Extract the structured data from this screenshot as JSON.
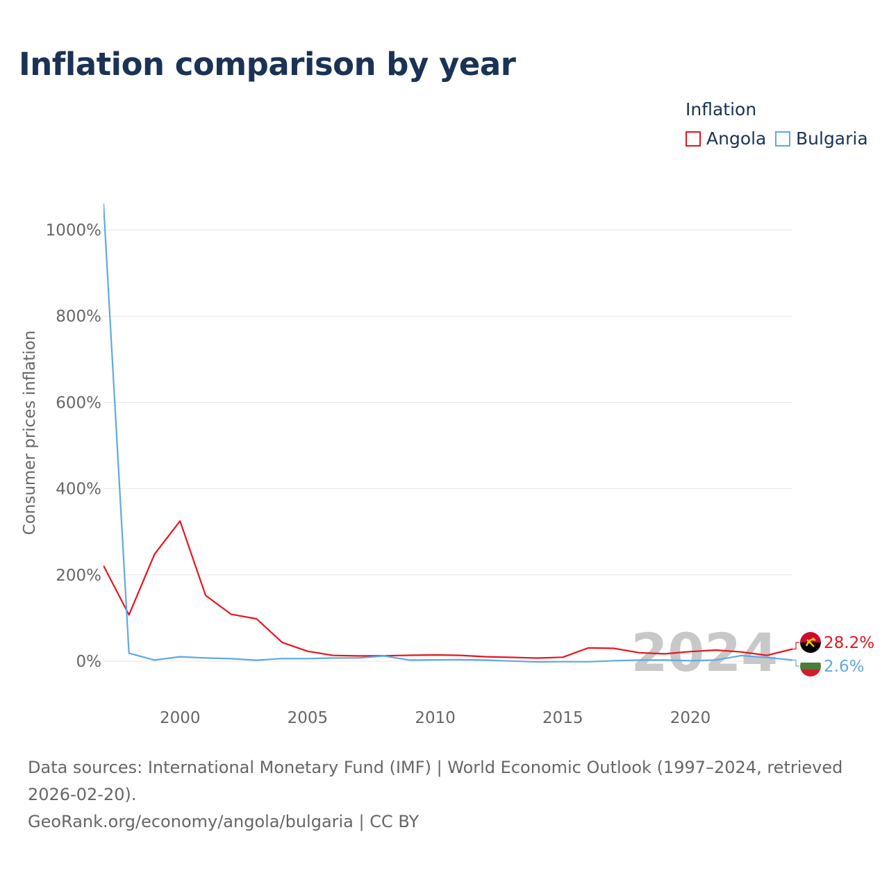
{
  "title": "Inflation comparison by year",
  "legend": {
    "title": "Inflation",
    "items": [
      {
        "name": "Angola",
        "color": "#e8141b"
      },
      {
        "name": "Bulgaria",
        "color": "#5fa8e4"
      }
    ]
  },
  "footer": {
    "sources": "Data sources: International Monetary Fund (IMF) | World Economic Outlook (1997–2024, retrieved 2026-02-20).",
    "credit": "GeoRank.org/economy/angola/bulgaria | CC BY"
  },
  "chart_data": {
    "type": "line",
    "title": "Inflation comparison by year",
    "xlabel": "",
    "ylabel": "Consumer prices inflation",
    "xlim": [
      1997,
      2024
    ],
    "ylim": [
      -80,
      1060
    ],
    "x_ticks": [
      2000,
      2005,
      2010,
      2015,
      2020
    ],
    "y_ticks": [
      0,
      200,
      400,
      600,
      800,
      1000
    ],
    "y_tick_labels": [
      "0%",
      "200%",
      "400%",
      "600%",
      "800%",
      "1000%"
    ],
    "grid": true,
    "legend_position": "top-right",
    "year_watermark": "2024",
    "x": [
      1997,
      1998,
      1999,
      2000,
      2001,
      2002,
      2003,
      2004,
      2005,
      2006,
      2007,
      2008,
      2009,
      2010,
      2011,
      2012,
      2013,
      2014,
      2015,
      2016,
      2017,
      2018,
      2019,
      2020,
      2021,
      2022,
      2023,
      2024
    ],
    "series": [
      {
        "name": "Angola",
        "color": "#e8141b",
        "end_label": "28.2%",
        "values": [
          221.5,
          107.4,
          248.2,
          325.0,
          152.6,
          108.9,
          98.3,
          43.6,
          23.0,
          13.3,
          12.2,
          12.5,
          13.7,
          14.5,
          13.5,
          10.3,
          8.8,
          7.3,
          9.2,
          30.7,
          29.8,
          19.6,
          17.1,
          22.3,
          25.8,
          21.4,
          13.6,
          28.2
        ]
      },
      {
        "name": "Bulgaria",
        "color": "#5fa8e4",
        "end_label": "2.6%",
        "values": [
          1061.2,
          18.7,
          2.6,
          10.3,
          7.4,
          5.8,
          2.3,
          6.1,
          6.0,
          7.4,
          7.6,
          12.0,
          2.5,
          3.0,
          3.4,
          2.4,
          0.4,
          -1.6,
          -1.1,
          -1.3,
          1.2,
          2.6,
          2.5,
          1.2,
          2.8,
          13.0,
          8.6,
          2.6
        ]
      }
    ]
  }
}
